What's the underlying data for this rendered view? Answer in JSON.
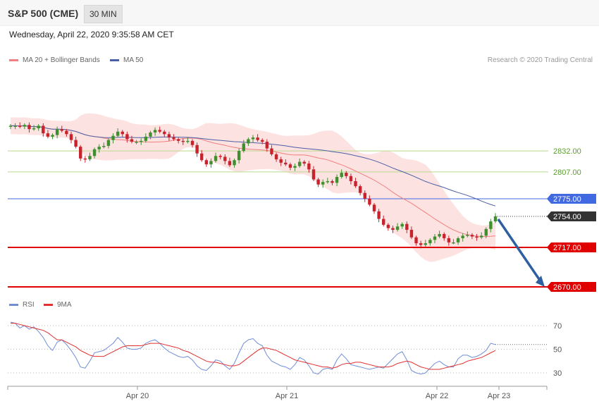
{
  "header": {
    "title": "S&P 500 (CME)",
    "interval": "30 MIN",
    "timestamp": "Wednesday, April 22, 2020 9:35:58 AM CET"
  },
  "legend": {
    "ma20": "MA 20 + Bollinger Bands",
    "ma50": "MA 50",
    "copyright": "Research © 2020 Trading Central",
    "rsi": "RSI",
    "rsi_ma": "9MA"
  },
  "colors": {
    "bull": "#3f8f2f",
    "bear": "#c8232c",
    "band_fill": "#fde2e2",
    "ma20": "#f08080",
    "ma50": "#4a5fa5",
    "support": "#e00000",
    "resistance_green": "#b9d98c",
    "pivot": "#4169e1",
    "current": "#333333",
    "arrow": "#2e5fa0",
    "rsi": "#6f8ed6",
    "rsi_ma": "#e03030"
  },
  "chart_data": {
    "type": "line",
    "instrument": "S&P 500 (CME)",
    "timeframe": "30 MIN",
    "x_labels": [
      "Apr 20",
      "Apr 21",
      "Apr 22",
      "Apr 23"
    ],
    "price_range": [
      2703,
      2881
    ],
    "levels": [
      {
        "value": 2832.0,
        "label": "2832.00",
        "kind": "resistance"
      },
      {
        "value": 2807.0,
        "label": "2807.00",
        "kind": "resistance"
      },
      {
        "value": 2775.0,
        "label": "2775.00",
        "kind": "pivot"
      },
      {
        "value": 2754.0,
        "label": "2754.00",
        "kind": "current"
      },
      {
        "value": 2717.0,
        "label": "2717.00",
        "kind": "support"
      },
      {
        "value": 2670.0,
        "label": "2670.00",
        "kind": "target"
      }
    ],
    "forecast_arrow": {
      "from": 2754,
      "to": 2670
    },
    "closes": [
      2862,
      2862,
      2861,
      2863,
      2858,
      2859,
      2862,
      2853,
      2849,
      2851,
      2858,
      2856,
      2852,
      2845,
      2837,
      2823,
      2822,
      2826,
      2834,
      2837,
      2838,
      2845,
      2850,
      2855,
      2852,
      2846,
      2843,
      2843,
      2844,
      2849,
      2854,
      2857,
      2855,
      2852,
      2848,
      2846,
      2844,
      2843,
      2844,
      2839,
      2829,
      2821,
      2816,
      2820,
      2826,
      2825,
      2820,
      2815,
      2821,
      2832,
      2841,
      2846,
      2848,
      2845,
      2843,
      2835,
      2828,
      2822,
      2818,
      2816,
      2812,
      2814,
      2819,
      2817,
      2810,
      2798,
      2792,
      2795,
      2796,
      2794,
      2801,
      2806,
      2802,
      2796,
      2790,
      2782,
      2775,
      2768,
      2760,
      2751,
      2744,
      2740,
      2738,
      2742,
      2745,
      2738,
      2729,
      2722,
      2720,
      2722,
      2726,
      2730,
      2733,
      2728,
      2723,
      2723,
      2728,
      2731,
      2732,
      2730,
      2729,
      2731,
      2739,
      2748,
      2754
    ],
    "rsi": {
      "name": "RSI",
      "ma_name": "9MA",
      "range": [
        20,
        80
      ],
      "ticks": [
        70,
        50,
        30
      ],
      "values": [
        73,
        72,
        68,
        70,
        67,
        69,
        65,
        60,
        53,
        49,
        56,
        58,
        54,
        49,
        43,
        35,
        34,
        40,
        47,
        48,
        49,
        52,
        55,
        60,
        56,
        51,
        50,
        50,
        51,
        55,
        57,
        58,
        55,
        51,
        48,
        46,
        44,
        43,
        44,
        41,
        36,
        33,
        32,
        36,
        41,
        40,
        36,
        33,
        38,
        47,
        55,
        58,
        59,
        55,
        53,
        45,
        40,
        38,
        36,
        35,
        33,
        37,
        43,
        41,
        36,
        30,
        29,
        33,
        34,
        33,
        41,
        46,
        42,
        37,
        36,
        35,
        34,
        33,
        34,
        35,
        34,
        38,
        42,
        46,
        48,
        41,
        32,
        30,
        29,
        30,
        34,
        38,
        40,
        37,
        35,
        35,
        42,
        45,
        45,
        43,
        44,
        46,
        49,
        55,
        54
      ],
      "ma": [
        72,
        72,
        71,
        70,
        69,
        68,
        67,
        66,
        64,
        61,
        58,
        58,
        56,
        54,
        52,
        49,
        47,
        45,
        44,
        44,
        44,
        46,
        48,
        50,
        52,
        53,
        53,
        53,
        53,
        54,
        55,
        55,
        55,
        54,
        53,
        52,
        51,
        49,
        48,
        46,
        44,
        42,
        40,
        39,
        39,
        38,
        37,
        36,
        36,
        37,
        40,
        43,
        46,
        49,
        51,
        51,
        50,
        49,
        47,
        45,
        43,
        41,
        40,
        39,
        38,
        37,
        36,
        35,
        35,
        34,
        35,
        37,
        38,
        38,
        39,
        39,
        38,
        37,
        36,
        35,
        35,
        35,
        36,
        38,
        39,
        40,
        39,
        37,
        35,
        34,
        33,
        33,
        33,
        34,
        35,
        36,
        37,
        38,
        40,
        41,
        42,
        43,
        45,
        47,
        49
      ]
    }
  }
}
